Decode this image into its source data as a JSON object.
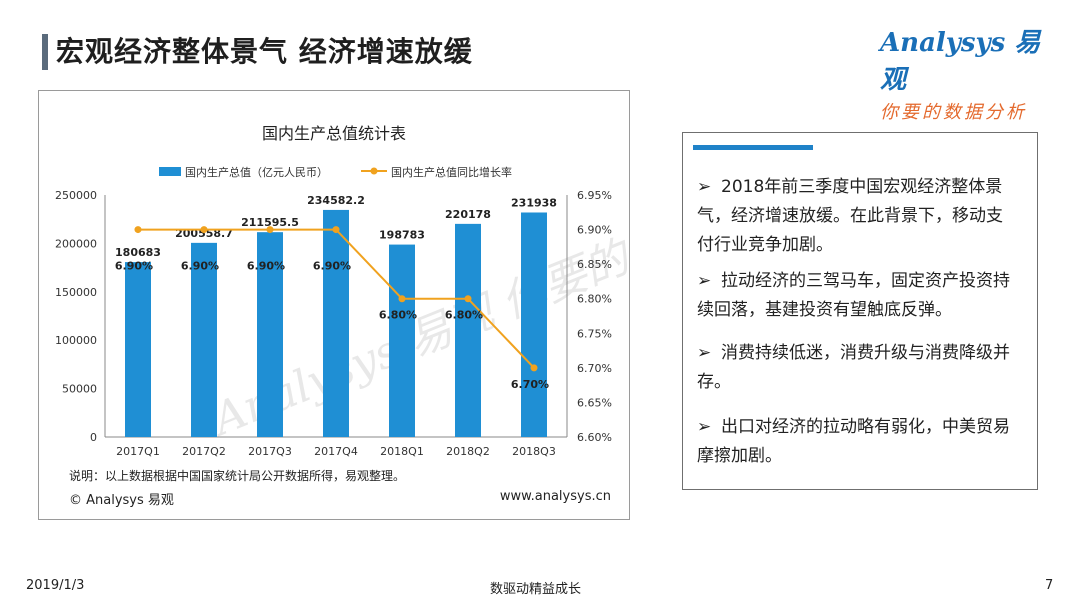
{
  "header": {
    "title": "宏观经济整体景气  经济增速放缓"
  },
  "logo": {
    "main": "Analysys 易观",
    "tagline": "你要的数据分析"
  },
  "chart": {
    "note": "说明：以上数据根据中国国家统计局公开数据所得，易观整理。",
    "copyright": "© Analysys 易观",
    "website": "www.analysys.cn",
    "watermark": "Analysys 易观 你要的数据分析"
  },
  "chart_data": {
    "type": "bar",
    "title": "国内生产总值统计表",
    "categories": [
      "2017Q1",
      "2017Q2",
      "2017Q3",
      "2017Q4",
      "2018Q1",
      "2018Q2",
      "2018Q3"
    ],
    "series": [
      {
        "name": "国内生产总值（亿元人民币）",
        "type": "bar",
        "axis": "left",
        "values": [
          180683,
          200558.7,
          211595.5,
          234582.2,
          198783,
          220178,
          231938
        ],
        "labels": [
          "180683",
          "200558.7",
          "211595.5",
          "234582.2",
          "198783",
          "220178",
          "231938"
        ],
        "color": "#1f8fd4"
      },
      {
        "name": "国内生产总值同比增长率",
        "type": "line",
        "axis": "right",
        "values": [
          6.9,
          6.9,
          6.9,
          6.9,
          6.8,
          6.8,
          6.7
        ],
        "labels": [
          "6.90%",
          "6.90%",
          "6.90%",
          "6.90%",
          "6.80%",
          "6.80%",
          "6.70%"
        ],
        "color": "#f0a21f"
      }
    ],
    "y_left": {
      "min": 0,
      "max": 250000,
      "ticks": [
        0,
        50000,
        100000,
        150000,
        200000,
        250000
      ]
    },
    "y_right": {
      "min": 6.6,
      "max": 6.95,
      "ticks": [
        "6.60%",
        "6.65%",
        "6.70%",
        "6.75%",
        "6.80%",
        "6.85%",
        "6.90%",
        "6.95%"
      ]
    },
    "legend_position": "top-center",
    "grid": false
  },
  "sidebar": {
    "bullets": [
      "2018年前三季度中国宏观经济整体景气，经济增速放缓。在此背景下，移动支付行业竞争加剧。",
      "拉动经济的三驾马车，固定资产投资持续回落，基建投资有望触底反弹。",
      "消费持续低迷，消费升级与消费降级并存。",
      "出口对经济的拉动略有弱化，中美贸易摩擦加剧。"
    ],
    "arrow": "➢"
  },
  "footer": {
    "date": "2019/1/3",
    "center": "数驱动精益成长",
    "page": "7"
  }
}
